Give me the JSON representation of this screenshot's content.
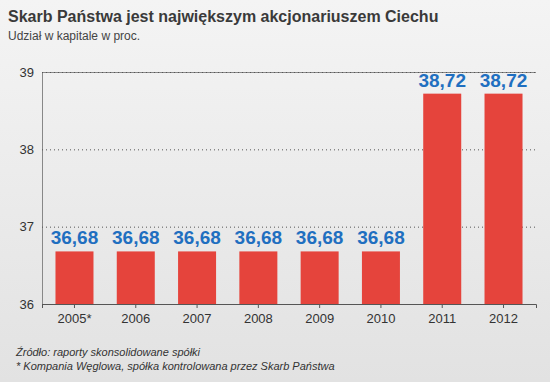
{
  "chart_data": {
    "type": "bar",
    "title": "Skarb Państwa jest największym akcjonariuszem Ciechu",
    "subtitle": "Udział w kapitale w proc.",
    "categories": [
      "2005*",
      "2006",
      "2007",
      "2008",
      "2009",
      "2010",
      "2011",
      "2012"
    ],
    "values": [
      36.68,
      36.68,
      36.68,
      36.68,
      36.68,
      36.68,
      38.72,
      38.72
    ],
    "value_labels": [
      "36,68",
      "36,68",
      "36,68",
      "36,68",
      "36,68",
      "36,68",
      "38,72",
      "38,72"
    ],
    "color": "#e5443c",
    "ylim": [
      36,
      39
    ],
    "yticks": [
      36,
      37,
      38,
      39
    ],
    "grid": true,
    "data_labels": true,
    "annotations": [
      "Źródło: raporty skonsolidowane spółki",
      "* Kompania Węglowa, spółka kontrolowana przez Skarb Państwa"
    ]
  }
}
